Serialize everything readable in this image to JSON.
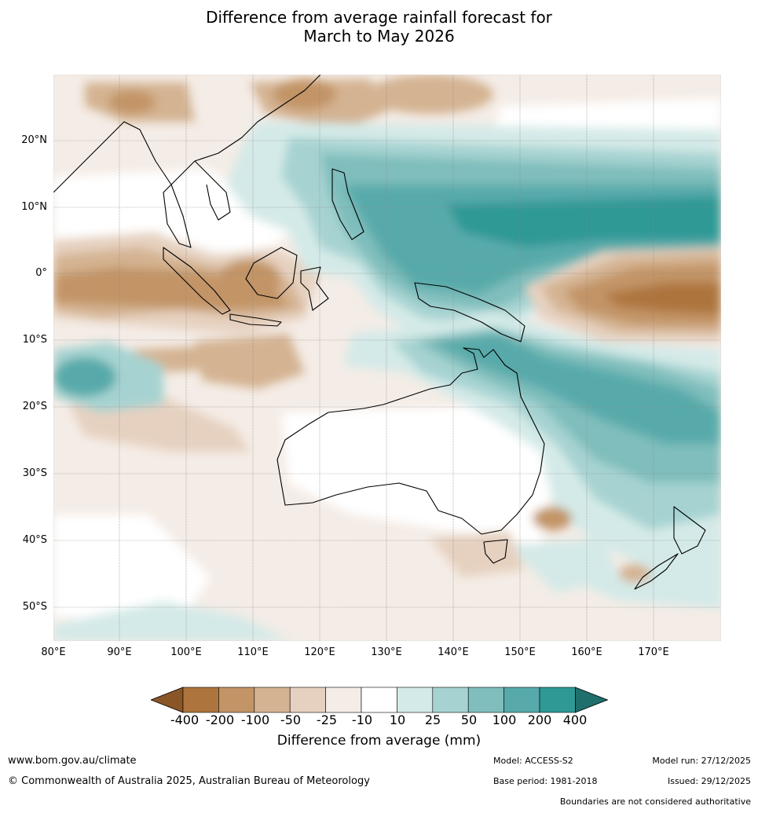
{
  "title": {
    "line1": "Difference from average rainfall forecast for",
    "line2": "March to May 2026"
  },
  "map": {
    "lat_labels": [
      "20°N",
      "10°N",
      "0°",
      "10°S",
      "20°S",
      "30°S",
      "40°S",
      "50°S"
    ],
    "lon_labels": [
      "80°E",
      "90°E",
      "100°E",
      "110°E",
      "120°E",
      "130°E",
      "140°E",
      "150°E",
      "160°E",
      "170°E"
    ]
  },
  "legend": {
    "ticks": [
      "-400",
      "-200",
      "-100",
      "-50",
      "-25",
      "-10",
      "10",
      "25",
      "50",
      "100",
      "200",
      "400"
    ],
    "colors": [
      "#8a5527",
      "#ad753d",
      "#c29466",
      "#d4b392",
      "#e6d1c0",
      "#f4ece6",
      "#ffffff",
      "#d4eae8",
      "#a6d3d1",
      "#7fbebc",
      "#58aaaa",
      "#2f9995",
      "#1f6f6c"
    ],
    "title": "Difference from average (mm)"
  },
  "footer": {
    "website": "www.bom.gov.au/climate",
    "copyright": "© Commonwealth of Australia 2025, Australian Bureau of Meteorology",
    "model": "Model: ACCESS-S2",
    "base_period": "Base period: 1981-2018",
    "model_run": "Model run: 27/12/2025",
    "issued": "Issued: 29/12/2025",
    "disclaimer": "Boundaries are not considered authoritative"
  }
}
